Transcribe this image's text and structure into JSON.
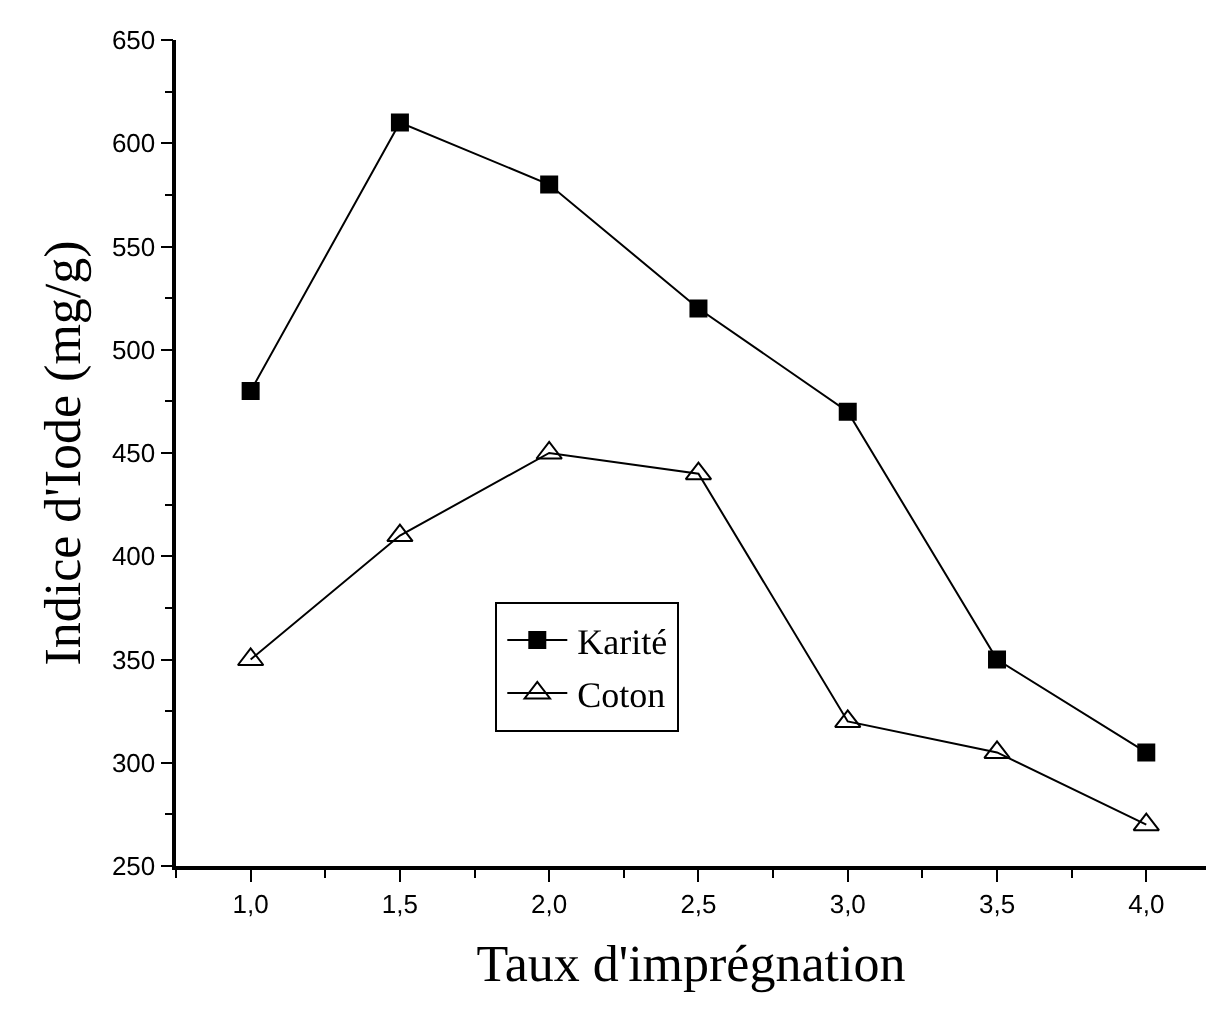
{
  "chart_data": {
    "type": "line",
    "xlabel": "Taux d'imprégnation",
    "ylabel": "Indice d'Iode (mg/g)",
    "x": [
      1.0,
      1.5,
      2.0,
      2.5,
      3.0,
      3.5,
      4.0
    ],
    "series": [
      {
        "name": "Karité",
        "color": "#000000",
        "marker": "square",
        "values": [
          480,
          610,
          580,
          520,
          470,
          350,
          305
        ]
      },
      {
        "name": "Coton",
        "color": "#000000",
        "marker": "triangle",
        "values": [
          350,
          410,
          450,
          440,
          320,
          305,
          270
        ]
      }
    ],
    "xlim": [
      0.75,
      4.2
    ],
    "xticks": [
      {
        "value": 1,
        "label": "1,0"
      },
      {
        "value": 1.5,
        "label": "1,5"
      },
      {
        "value": 2,
        "label": "2,0"
      },
      {
        "value": 2.5,
        "label": "2,5"
      },
      {
        "value": 3,
        "label": "3,0"
      },
      {
        "value": 3.5,
        "label": "3,5"
      },
      {
        "value": 4,
        "label": "4,0"
      }
    ],
    "ylim": [
      250,
      650
    ],
    "yticks": [
      250,
      300,
      350,
      400,
      450,
      500,
      550,
      600,
      650
    ],
    "grid": false,
    "legend": "bottom",
    "line_style": "solid"
  }
}
